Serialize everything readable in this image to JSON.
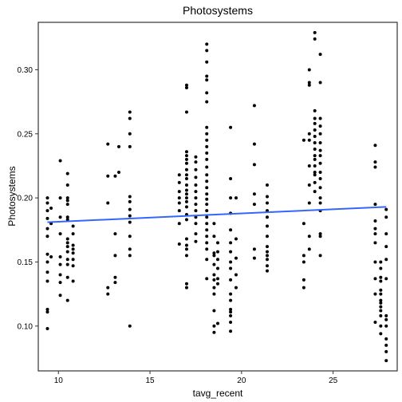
{
  "chart_data": {
    "type": "scatter",
    "title": "Photosystems",
    "xlabel": "tavg_recent",
    "ylabel": "Photosystems",
    "xlim": [
      8.9,
      28.5
    ],
    "ylim": [
      0.065,
      0.337
    ],
    "x_ticks": [
      10,
      15,
      20,
      25
    ],
    "x_tick_labels": [
      "10",
      "15",
      "20",
      "25"
    ],
    "y_ticks": [
      0.1,
      0.15,
      0.2,
      0.25,
      0.3
    ],
    "y_tick_labels": [
      "0.10",
      "0.15",
      "0.20",
      "0.25",
      "0.30"
    ],
    "grid": false,
    "points": [
      [
        9.4,
        0.098
      ],
      [
        9.4,
        0.111
      ],
      [
        9.4,
        0.113
      ],
      [
        9.4,
        0.135
      ],
      [
        9.4,
        0.142
      ],
      [
        9.4,
        0.15
      ],
      [
        9.4,
        0.156
      ],
      [
        9.4,
        0.17
      ],
      [
        9.4,
        0.176
      ],
      [
        9.4,
        0.184
      ],
      [
        9.4,
        0.19
      ],
      [
        9.4,
        0.196
      ],
      [
        9.4,
        0.2
      ],
      [
        9.6,
        0.154
      ],
      [
        9.6,
        0.18
      ],
      [
        9.6,
        0.192
      ],
      [
        10.1,
        0.124
      ],
      [
        10.1,
        0.134
      ],
      [
        10.1,
        0.14
      ],
      [
        10.1,
        0.148
      ],
      [
        10.1,
        0.154
      ],
      [
        10.1,
        0.172
      ],
      [
        10.1,
        0.185
      ],
      [
        10.1,
        0.2
      ],
      [
        10.1,
        0.229
      ],
      [
        10.5,
        0.12
      ],
      [
        10.5,
        0.138
      ],
      [
        10.5,
        0.148
      ],
      [
        10.5,
        0.152
      ],
      [
        10.5,
        0.158
      ],
      [
        10.5,
        0.162
      ],
      [
        10.5,
        0.165
      ],
      [
        10.5,
        0.168
      ],
      [
        10.5,
        0.183
      ],
      [
        10.5,
        0.185
      ],
      [
        10.5,
        0.195
      ],
      [
        10.5,
        0.198
      ],
      [
        10.5,
        0.2
      ],
      [
        10.5,
        0.21
      ],
      [
        10.5,
        0.219
      ],
      [
        10.8,
        0.135
      ],
      [
        10.8,
        0.147
      ],
      [
        10.8,
        0.152
      ],
      [
        10.8,
        0.157
      ],
      [
        10.8,
        0.16
      ],
      [
        10.8,
        0.163
      ],
      [
        10.8,
        0.172
      ],
      [
        10.8,
        0.178
      ],
      [
        12.7,
        0.125
      ],
      [
        12.7,
        0.13
      ],
      [
        12.7,
        0.196
      ],
      [
        12.7,
        0.217
      ],
      [
        12.7,
        0.242
      ],
      [
        13.1,
        0.134
      ],
      [
        13.1,
        0.138
      ],
      [
        13.1,
        0.155
      ],
      [
        13.1,
        0.172
      ],
      [
        13.1,
        0.217
      ],
      [
        13.3,
        0.22
      ],
      [
        13.3,
        0.24
      ],
      [
        13.9,
        0.1
      ],
      [
        13.9,
        0.155
      ],
      [
        13.9,
        0.16
      ],
      [
        13.9,
        0.17
      ],
      [
        13.9,
        0.181
      ],
      [
        13.9,
        0.186
      ],
      [
        13.9,
        0.191
      ],
      [
        13.9,
        0.197
      ],
      [
        13.9,
        0.201
      ],
      [
        13.9,
        0.24
      ],
      [
        13.9,
        0.25
      ],
      [
        13.9,
        0.262
      ],
      [
        13.9,
        0.267
      ],
      [
        16.6,
        0.164
      ],
      [
        16.6,
        0.18
      ],
      [
        16.6,
        0.19
      ],
      [
        16.6,
        0.196
      ],
      [
        16.6,
        0.2
      ],
      [
        16.6,
        0.205
      ],
      [
        16.6,
        0.212
      ],
      [
        16.6,
        0.218
      ],
      [
        17.0,
        0.13
      ],
      [
        17.0,
        0.133
      ],
      [
        17.0,
        0.155
      ],
      [
        17.0,
        0.16
      ],
      [
        17.0,
        0.163
      ],
      [
        17.0,
        0.168
      ],
      [
        17.0,
        0.183
      ],
      [
        17.0,
        0.187
      ],
      [
        17.0,
        0.193
      ],
      [
        17.0,
        0.197
      ],
      [
        17.0,
        0.2
      ],
      [
        17.0,
        0.203
      ],
      [
        17.0,
        0.206
      ],
      [
        17.0,
        0.21
      ],
      [
        17.0,
        0.215
      ],
      [
        17.0,
        0.218
      ],
      [
        17.0,
        0.222
      ],
      [
        17.0,
        0.227
      ],
      [
        17.0,
        0.23
      ],
      [
        17.0,
        0.233
      ],
      [
        17.0,
        0.236
      ],
      [
        17.0,
        0.267
      ],
      [
        17.0,
        0.286
      ],
      [
        17.0,
        0.288
      ],
      [
        17.5,
        0.166
      ],
      [
        17.5,
        0.172
      ],
      [
        17.5,
        0.18
      ],
      [
        17.5,
        0.185
      ],
      [
        17.5,
        0.19
      ],
      [
        17.5,
        0.195
      ],
      [
        17.5,
        0.2
      ],
      [
        17.5,
        0.205
      ],
      [
        17.5,
        0.21
      ],
      [
        17.5,
        0.216
      ],
      [
        17.5,
        0.222
      ],
      [
        17.5,
        0.228
      ],
      [
        17.5,
        0.232
      ],
      [
        18.1,
        0.137
      ],
      [
        18.1,
        0.152
      ],
      [
        18.1,
        0.16
      ],
      [
        18.1,
        0.165
      ],
      [
        18.1,
        0.17
      ],
      [
        18.1,
        0.175
      ],
      [
        18.1,
        0.18
      ],
      [
        18.1,
        0.185
      ],
      [
        18.1,
        0.19
      ],
      [
        18.1,
        0.195
      ],
      [
        18.1,
        0.199
      ],
      [
        18.1,
        0.203
      ],
      [
        18.1,
        0.208
      ],
      [
        18.1,
        0.213
      ],
      [
        18.1,
        0.218
      ],
      [
        18.1,
        0.224
      ],
      [
        18.1,
        0.23
      ],
      [
        18.1,
        0.235
      ],
      [
        18.1,
        0.24
      ],
      [
        18.1,
        0.245
      ],
      [
        18.1,
        0.25
      ],
      [
        18.1,
        0.255
      ],
      [
        18.1,
        0.275
      ],
      [
        18.1,
        0.282
      ],
      [
        18.1,
        0.292
      ],
      [
        18.1,
        0.295
      ],
      [
        18.1,
        0.306
      ],
      [
        18.1,
        0.315
      ],
      [
        18.1,
        0.32
      ],
      [
        18.5,
        0.095
      ],
      [
        18.5,
        0.1
      ],
      [
        18.5,
        0.112
      ],
      [
        18.5,
        0.125
      ],
      [
        18.5,
        0.13
      ],
      [
        18.5,
        0.136
      ],
      [
        18.5,
        0.14
      ],
      [
        18.5,
        0.148
      ],
      [
        18.5,
        0.155
      ],
      [
        18.5,
        0.157
      ],
      [
        18.5,
        0.17
      ],
      [
        18.5,
        0.18
      ],
      [
        18.7,
        0.102
      ],
      [
        18.7,
        0.133
      ],
      [
        18.7,
        0.137
      ],
      [
        18.7,
        0.145
      ],
      [
        18.7,
        0.152
      ],
      [
        18.7,
        0.158
      ],
      [
        18.7,
        0.165
      ],
      [
        19.4,
        0.096
      ],
      [
        19.4,
        0.103
      ],
      [
        19.4,
        0.108
      ],
      [
        19.4,
        0.111
      ],
      [
        19.4,
        0.113
      ],
      [
        19.4,
        0.12
      ],
      [
        19.4,
        0.125
      ],
      [
        19.4,
        0.136
      ],
      [
        19.4,
        0.145
      ],
      [
        19.4,
        0.15
      ],
      [
        19.4,
        0.158
      ],
      [
        19.4,
        0.165
      ],
      [
        19.4,
        0.175
      ],
      [
        19.4,
        0.188
      ],
      [
        19.4,
        0.2
      ],
      [
        19.4,
        0.215
      ],
      [
        19.4,
        0.255
      ],
      [
        19.7,
        0.13
      ],
      [
        19.7,
        0.14
      ],
      [
        19.7,
        0.153
      ],
      [
        19.7,
        0.168
      ],
      [
        19.7,
        0.2
      ],
      [
        20.7,
        0.153
      ],
      [
        20.7,
        0.16
      ],
      [
        20.7,
        0.195
      ],
      [
        20.7,
        0.203
      ],
      [
        20.7,
        0.226
      ],
      [
        20.7,
        0.242
      ],
      [
        20.7,
        0.272
      ],
      [
        21.4,
        0.143
      ],
      [
        21.4,
        0.147
      ],
      [
        21.4,
        0.152
      ],
      [
        21.4,
        0.155
      ],
      [
        21.4,
        0.158
      ],
      [
        21.4,
        0.162
      ],
      [
        21.4,
        0.17
      ],
      [
        21.4,
        0.178
      ],
      [
        21.4,
        0.185
      ],
      [
        21.4,
        0.19
      ],
      [
        21.4,
        0.196
      ],
      [
        21.4,
        0.201
      ],
      [
        21.4,
        0.21
      ],
      [
        23.4,
        0.13
      ],
      [
        23.4,
        0.136
      ],
      [
        23.4,
        0.15
      ],
      [
        23.4,
        0.155
      ],
      [
        23.4,
        0.18
      ],
      [
        23.4,
        0.245
      ],
      [
        23.7,
        0.16
      ],
      [
        23.7,
        0.17
      ],
      [
        23.7,
        0.196
      ],
      [
        23.7,
        0.21
      ],
      [
        23.7,
        0.225
      ],
      [
        23.7,
        0.245
      ],
      [
        23.7,
        0.25
      ],
      [
        23.7,
        0.288
      ],
      [
        23.7,
        0.29
      ],
      [
        23.7,
        0.3
      ],
      [
        24.0,
        0.205
      ],
      [
        24.0,
        0.212
      ],
      [
        24.0,
        0.218
      ],
      [
        24.0,
        0.22
      ],
      [
        24.0,
        0.225
      ],
      [
        24.0,
        0.23
      ],
      [
        24.0,
        0.233
      ],
      [
        24.0,
        0.238
      ],
      [
        24.0,
        0.243
      ],
      [
        24.0,
        0.248
      ],
      [
        24.0,
        0.253
      ],
      [
        24.0,
        0.258
      ],
      [
        24.0,
        0.262
      ],
      [
        24.0,
        0.268
      ],
      [
        24.0,
        0.324
      ],
      [
        24.0,
        0.329
      ],
      [
        24.3,
        0.155
      ],
      [
        24.3,
        0.17
      ],
      [
        24.3,
        0.172
      ],
      [
        24.3,
        0.19
      ],
      [
        24.3,
        0.196
      ],
      [
        24.3,
        0.2
      ],
      [
        24.3,
        0.208
      ],
      [
        24.3,
        0.215
      ],
      [
        24.3,
        0.22
      ],
      [
        24.3,
        0.227
      ],
      [
        24.3,
        0.233
      ],
      [
        24.3,
        0.237
      ],
      [
        24.3,
        0.243
      ],
      [
        24.3,
        0.25
      ],
      [
        24.3,
        0.256
      ],
      [
        24.3,
        0.262
      ],
      [
        24.3,
        0.29
      ],
      [
        24.3,
        0.312
      ],
      [
        27.3,
        0.103
      ],
      [
        27.3,
        0.125
      ],
      [
        27.3,
        0.137
      ],
      [
        27.3,
        0.15
      ],
      [
        27.3,
        0.165
      ],
      [
        27.3,
        0.172
      ],
      [
        27.3,
        0.176
      ],
      [
        27.3,
        0.182
      ],
      [
        27.3,
        0.195
      ],
      [
        27.3,
        0.224
      ],
      [
        27.3,
        0.228
      ],
      [
        27.3,
        0.241
      ],
      [
        27.6,
        0.094
      ],
      [
        27.6,
        0.1
      ],
      [
        27.6,
        0.108
      ],
      [
        27.6,
        0.112
      ],
      [
        27.6,
        0.115
      ],
      [
        27.6,
        0.118
      ],
      [
        27.6,
        0.12
      ],
      [
        27.6,
        0.125
      ],
      [
        27.6,
        0.128
      ],
      [
        27.6,
        0.135
      ],
      [
        27.6,
        0.138
      ],
      [
        27.6,
        0.145
      ],
      [
        27.6,
        0.15
      ],
      [
        27.9,
        0.073
      ],
      [
        27.9,
        0.08
      ],
      [
        27.9,
        0.085
      ],
      [
        27.9,
        0.09
      ],
      [
        27.9,
        0.1
      ],
      [
        27.9,
        0.105
      ],
      [
        27.9,
        0.108
      ],
      [
        27.9,
        0.137
      ],
      [
        27.9,
        0.152
      ],
      [
        27.9,
        0.162
      ],
      [
        27.9,
        0.172
      ],
      [
        27.9,
        0.185
      ],
      [
        27.9,
        0.191
      ]
    ],
    "trend_line": {
      "x": [
        9.4,
        27.9
      ],
      "y": [
        0.181,
        0.193
      ],
      "color": "#3366ff"
    },
    "point_color": "#000000"
  }
}
